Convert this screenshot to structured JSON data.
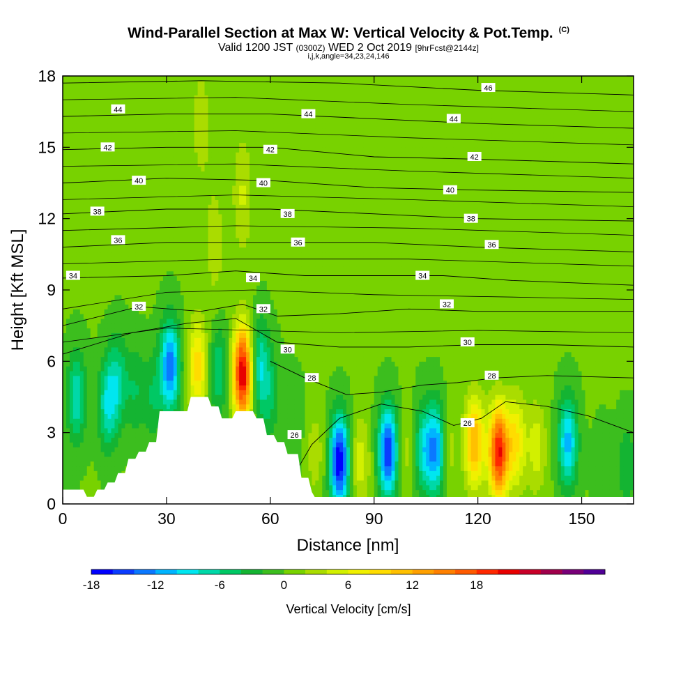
{
  "header": {
    "title": "Wind-Parallel Section at Max W: Vertical Velocity & Pot.Temp.",
    "title_mark": "(C)",
    "subtitle_a": "Valid 1200 JST",
    "subtitle_b": "(0300Z)",
    "subtitle_c": "WED 2 Oct 2019",
    "subtitle_d": "[9hrFcst@2144z]",
    "params": "i,j,k,angle=34,23,24,146"
  },
  "chart_data": {
    "type": "heatmap",
    "title": "Wind-Parallel Section at Max W: Vertical Velocity & Pot.Temp.",
    "xlabel": "Distance [nm]",
    "ylabel": "Height [Kft MSL]",
    "xlim": [
      0,
      165
    ],
    "ylim": [
      0,
      18
    ],
    "xticks": [
      0,
      30,
      60,
      90,
      120,
      150
    ],
    "yticks": [
      0,
      3,
      6,
      9,
      12,
      15,
      18
    ],
    "colorbar": {
      "label": "Vertical Velocity [cm/s]",
      "min": -18,
      "step": 2,
      "ticks": [
        -18,
        -12,
        -6,
        0,
        6,
        12,
        18
      ],
      "colors": [
        "#0000ff",
        "#0a3cff",
        "#0b78ff",
        "#00b4ff",
        "#00e6f0",
        "#00d8a8",
        "#00c864",
        "#14b432",
        "#3cbe1e",
        "#78d200",
        "#aadc00",
        "#d2f000",
        "#f0f000",
        "#ffdc00",
        "#ffc000",
        "#ffa000",
        "#ff8000",
        "#ff5a00",
        "#ff2800",
        "#e80000",
        "#c80028",
        "#a0004b",
        "#780078",
        "#500096"
      ]
    },
    "velocity_cells": [
      {
        "x": 0,
        "y": 0,
        "w": -1
      },
      {
        "x": 4,
        "y": 4.5,
        "w": -8
      },
      {
        "x": 13,
        "y": 4.2,
        "w": -8
      },
      {
        "x": 16,
        "y": 5.2,
        "w": -6
      },
      {
        "x": 21,
        "y": 4.8,
        "w": -4
      },
      {
        "x": 26,
        "y": 4.5,
        "w": -4
      },
      {
        "x": 31,
        "y": 5.8,
        "w": -14
      },
      {
        "x": 39,
        "y": 5.8,
        "w": 9
      },
      {
        "x": 45,
        "y": 5.6,
        "w": -6
      },
      {
        "x": 52,
        "y": 5.5,
        "w": 22
      },
      {
        "x": 57,
        "y": 5.8,
        "w": -8
      },
      {
        "x": 60,
        "y": 4.5,
        "w": -4
      },
      {
        "x": 67,
        "y": 3.5,
        "w": -2
      },
      {
        "x": 73,
        "y": 2.2,
        "w": 3
      },
      {
        "x": 80,
        "y": 1.8,
        "w": -18
      },
      {
        "x": 86,
        "y": 1.8,
        "w": 5
      },
      {
        "x": 94,
        "y": 2.2,
        "w": -16
      },
      {
        "x": 100,
        "y": 2.2,
        "w": 3
      },
      {
        "x": 104,
        "y": 2.3,
        "w": -8
      },
      {
        "x": 108,
        "y": 2.3,
        "w": -13
      },
      {
        "x": 111,
        "y": 2.3,
        "w": 4
      },
      {
        "x": 119,
        "y": 2.6,
        "w": 12
      },
      {
        "x": 126,
        "y": 2.2,
        "w": 20
      },
      {
        "x": 131,
        "y": 2.6,
        "w": 8
      },
      {
        "x": 137,
        "y": 2.4,
        "w": 5
      },
      {
        "x": 146,
        "y": 2.6,
        "w": -11
      },
      {
        "x": 156,
        "y": 1.3,
        "w": -2
      },
      {
        "x": 163,
        "y": 1.6,
        "w": -4
      },
      {
        "x": 44,
        "y": 11.0,
        "w": 3
      },
      {
        "x": 52,
        "y": 13.0,
        "w": 4
      },
      {
        "x": 70,
        "y": 10.5,
        "w": 1
      },
      {
        "x": 95,
        "y": 12.0,
        "w": 1
      },
      {
        "x": 115,
        "y": 16.5,
        "w": 1
      },
      {
        "x": 40,
        "y": 16.0,
        "w": 3
      }
    ],
    "terrain_profile": {
      "x": [
        0,
        6,
        7,
        9,
        10,
        12,
        13,
        15,
        16,
        18,
        19,
        21,
        22,
        24,
        25,
        27,
        28,
        36,
        37,
        42,
        43,
        45,
        46,
        49,
        50,
        55,
        56,
        58,
        59,
        61,
        62,
        64,
        65,
        68,
        69,
        71,
        72,
        74
      ],
      "h": [
        0.6,
        0.6,
        0.3,
        0.3,
        0.6,
        0.6,
        0.9,
        0.9,
        1.3,
        1.3,
        1.9,
        1.9,
        2.2,
        2.2,
        2.6,
        2.6,
        3.9,
        3.9,
        4.5,
        4.5,
        4.1,
        4.1,
        3.6,
        3.6,
        3.9,
        3.9,
        3.6,
        3.6,
        2.9,
        2.9,
        2.6,
        2.6,
        2.1,
        2.1,
        1.1,
        1.1,
        0.5,
        0.0
      ]
    },
    "theta_contours": [
      {
        "value": 26,
        "label": "26",
        "points": [
          [
            68,
            1.5
          ],
          [
            72,
            2.5
          ],
          [
            80,
            3.6
          ],
          [
            92,
            4.2
          ],
          [
            104,
            3.9
          ],
          [
            113,
            3.3
          ],
          [
            121,
            3.6
          ],
          [
            128,
            4.3
          ],
          [
            140,
            4.1
          ],
          [
            152,
            3.7
          ],
          [
            165,
            3.0
          ]
        ],
        "labels_at": [
          [
            67,
            2.9
          ],
          [
            117,
            3.4
          ]
        ]
      },
      {
        "value": 28,
        "label": "28",
        "points": [
          [
            60,
            6.0
          ],
          [
            70,
            5.3
          ],
          [
            82,
            4.6
          ],
          [
            92,
            4.7
          ],
          [
            104,
            5.0
          ],
          [
            114,
            5.1
          ],
          [
            125,
            5.3
          ],
          [
            140,
            5.4
          ],
          [
            165,
            5.3
          ]
        ],
        "labels_at": [
          [
            72,
            5.3
          ],
          [
            124,
            5.4
          ]
        ]
      },
      {
        "value": 30,
        "label": "30",
        "points": [
          [
            0,
            6.3
          ],
          [
            20,
            7.2
          ],
          [
            36,
            7.6
          ],
          [
            50,
            7.8
          ],
          [
            62,
            6.8
          ],
          [
            80,
            6.6
          ],
          [
            100,
            6.6
          ],
          [
            120,
            6.7
          ],
          [
            140,
            6.7
          ],
          [
            165,
            6.6
          ]
        ],
        "labels_at": [
          [
            65,
            6.5
          ],
          [
            117,
            6.8
          ]
        ]
      },
      {
        "value": 32,
        "label": "32",
        "points": [
          [
            0,
            7.5
          ],
          [
            22,
            8.3
          ],
          [
            40,
            8.1
          ],
          [
            52,
            8.4
          ],
          [
            62,
            7.9
          ],
          [
            80,
            8.0
          ],
          [
            100,
            8.2
          ],
          [
            120,
            8.1
          ],
          [
            140,
            8.1
          ],
          [
            165,
            8.1
          ]
        ],
        "labels_at": [
          [
            22,
            8.3
          ],
          [
            58,
            8.2
          ],
          [
            111,
            8.4
          ]
        ]
      },
      {
        "value": 34,
        "label": "34",
        "points": [
          [
            0,
            9.5
          ],
          [
            30,
            9.6
          ],
          [
            50,
            9.8
          ],
          [
            70,
            9.6
          ],
          [
            90,
            9.6
          ],
          [
            110,
            9.6
          ],
          [
            130,
            9.4
          ],
          [
            165,
            9.2
          ]
        ],
        "labels_at": [
          [
            3,
            9.6
          ],
          [
            55,
            9.5
          ],
          [
            104,
            9.6
          ]
        ]
      },
      {
        "value": 36,
        "label": "36",
        "points": [
          [
            0,
            10.8
          ],
          [
            30,
            11.0
          ],
          [
            60,
            11.0
          ],
          [
            90,
            11.0
          ],
          [
            120,
            10.8
          ],
          [
            165,
            10.6
          ]
        ],
        "labels_at": [
          [
            16,
            11.1
          ],
          [
            68,
            11.0
          ],
          [
            124,
            10.9
          ]
        ]
      },
      {
        "value": 38,
        "label": "38",
        "points": [
          [
            0,
            12.2
          ],
          [
            30,
            12.4
          ],
          [
            60,
            12.4
          ],
          [
            90,
            12.2
          ],
          [
            120,
            12.0
          ],
          [
            165,
            11.9
          ]
        ],
        "labels_at": [
          [
            10,
            12.3
          ],
          [
            65,
            12.2
          ],
          [
            118,
            12.0
          ]
        ]
      },
      {
        "value": 40,
        "label": "40",
        "points": [
          [
            0,
            13.5
          ],
          [
            30,
            13.7
          ],
          [
            60,
            13.6
          ],
          [
            90,
            13.3
          ],
          [
            120,
            13.2
          ],
          [
            165,
            13.1
          ]
        ],
        "labels_at": [
          [
            22,
            13.6
          ],
          [
            58,
            13.5
          ],
          [
            112,
            13.2
          ]
        ]
      },
      {
        "value": 42,
        "label": "42",
        "points": [
          [
            0,
            14.9
          ],
          [
            30,
            15.0
          ],
          [
            60,
            15.0
          ],
          [
            90,
            14.6
          ],
          [
            120,
            14.5
          ],
          [
            165,
            14.3
          ]
        ],
        "labels_at": [
          [
            13,
            15.0
          ],
          [
            60,
            14.9
          ],
          [
            119,
            14.6
          ]
        ]
      },
      {
        "value": 44,
        "label": "44",
        "points": [
          [
            0,
            16.3
          ],
          [
            30,
            16.4
          ],
          [
            60,
            16.4
          ],
          [
            90,
            16.2
          ],
          [
            120,
            16.0
          ],
          [
            165,
            15.8
          ]
        ],
        "labels_at": [
          [
            16,
            16.6
          ],
          [
            71,
            16.4
          ],
          [
            113,
            16.2
          ]
        ]
      },
      {
        "value": 46,
        "label": "46",
        "points": [
          [
            0,
            17.7
          ],
          [
            40,
            17.8
          ],
          [
            80,
            17.7
          ],
          [
            120,
            17.4
          ],
          [
            165,
            17.2
          ]
        ],
        "labels_at": [
          [
            123,
            17.5
          ]
        ]
      }
    ],
    "extra_isentropes": [
      [
        [
          0,
          6.8
        ],
        [
          30,
          7.4
        ],
        [
          55,
          7.3
        ],
        [
          80,
          7.2
        ],
        [
          120,
          7.3
        ],
        [
          165,
          7.2
        ]
      ],
      [
        [
          0,
          8.2
        ],
        [
          30,
          8.9
        ],
        [
          55,
          9.0
        ],
        [
          90,
          8.8
        ],
        [
          130,
          8.7
        ],
        [
          165,
          8.6
        ]
      ],
      [
        [
          0,
          10.1
        ],
        [
          50,
          10.3
        ],
        [
          100,
          10.3
        ],
        [
          165,
          10.0
        ]
      ],
      [
        [
          0,
          11.5
        ],
        [
          50,
          11.7
        ],
        [
          100,
          11.6
        ],
        [
          165,
          11.3
        ]
      ],
      [
        [
          0,
          12.8
        ],
        [
          50,
          13.0
        ],
        [
          100,
          12.8
        ],
        [
          165,
          12.5
        ]
      ],
      [
        [
          0,
          14.2
        ],
        [
          50,
          14.3
        ],
        [
          100,
          14.0
        ],
        [
          165,
          13.7
        ]
      ],
      [
        [
          0,
          15.6
        ],
        [
          50,
          15.7
        ],
        [
          100,
          15.4
        ],
        [
          165,
          15.1
        ]
      ],
      [
        [
          0,
          17.0
        ],
        [
          50,
          17.1
        ],
        [
          100,
          16.8
        ],
        [
          165,
          16.5
        ]
      ]
    ]
  }
}
